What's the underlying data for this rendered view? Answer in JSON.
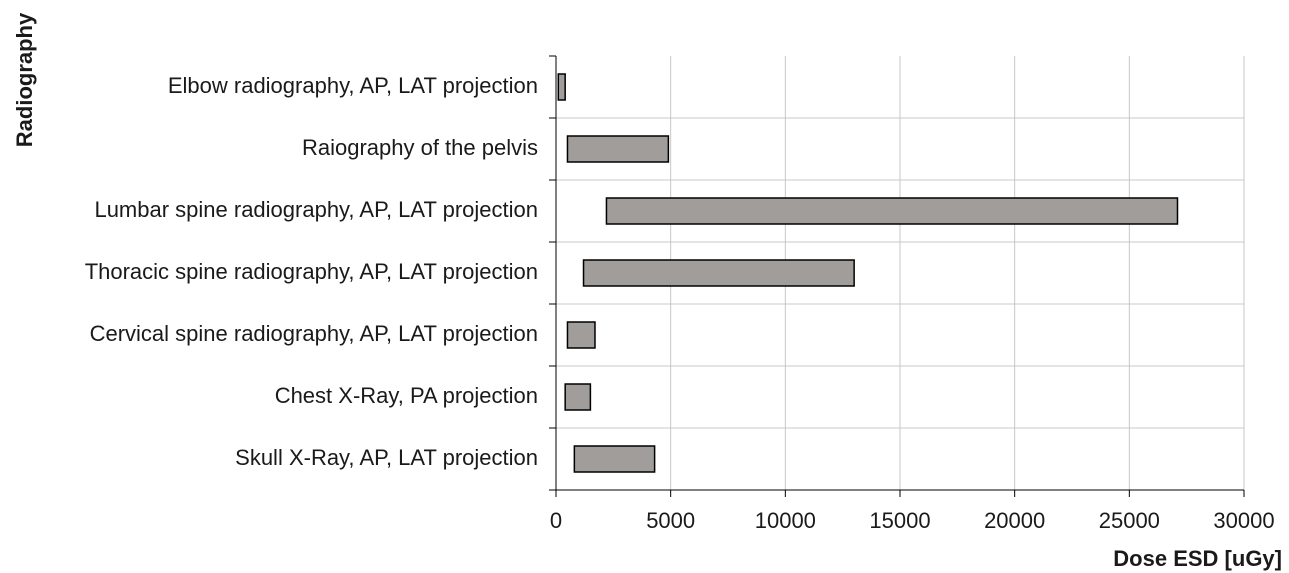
{
  "chart_data": {
    "type": "bar",
    "orientation": "horizontal",
    "stacked": true,
    "title": "",
    "xlabel": "Dose ESD [uGy]",
    "ylabel": "Radiography",
    "xlim": [
      0,
      30000
    ],
    "xticks": [
      0,
      5000,
      10000,
      15000,
      20000,
      25000,
      30000
    ],
    "grid": true,
    "legend": "none",
    "categories": [
      "Elbow radiography, AP, LAT projection",
      "Raiography of the pelvis",
      "Lumbar spine radiography, AP, LAT projection",
      "Thoracic spine radiography, AP, LAT projection",
      "Cervical spine radiography, AP, LAT projection",
      "Chest X-Ray, PA projection",
      "Skull X-Ray, AP, LAT projection"
    ],
    "series": [
      {
        "values": [
          100,
          500,
          2200,
          1200,
          500,
          400,
          800
        ]
      },
      {
        "values": [
          300,
          4400,
          24900,
          11800,
          1200,
          1100,
          3500
        ]
      }
    ],
    "colors": {
      "base": "#ffffff",
      "bar": "#a09d9b",
      "stroke": "#000000",
      "grid": "#c8c8c8"
    }
  }
}
